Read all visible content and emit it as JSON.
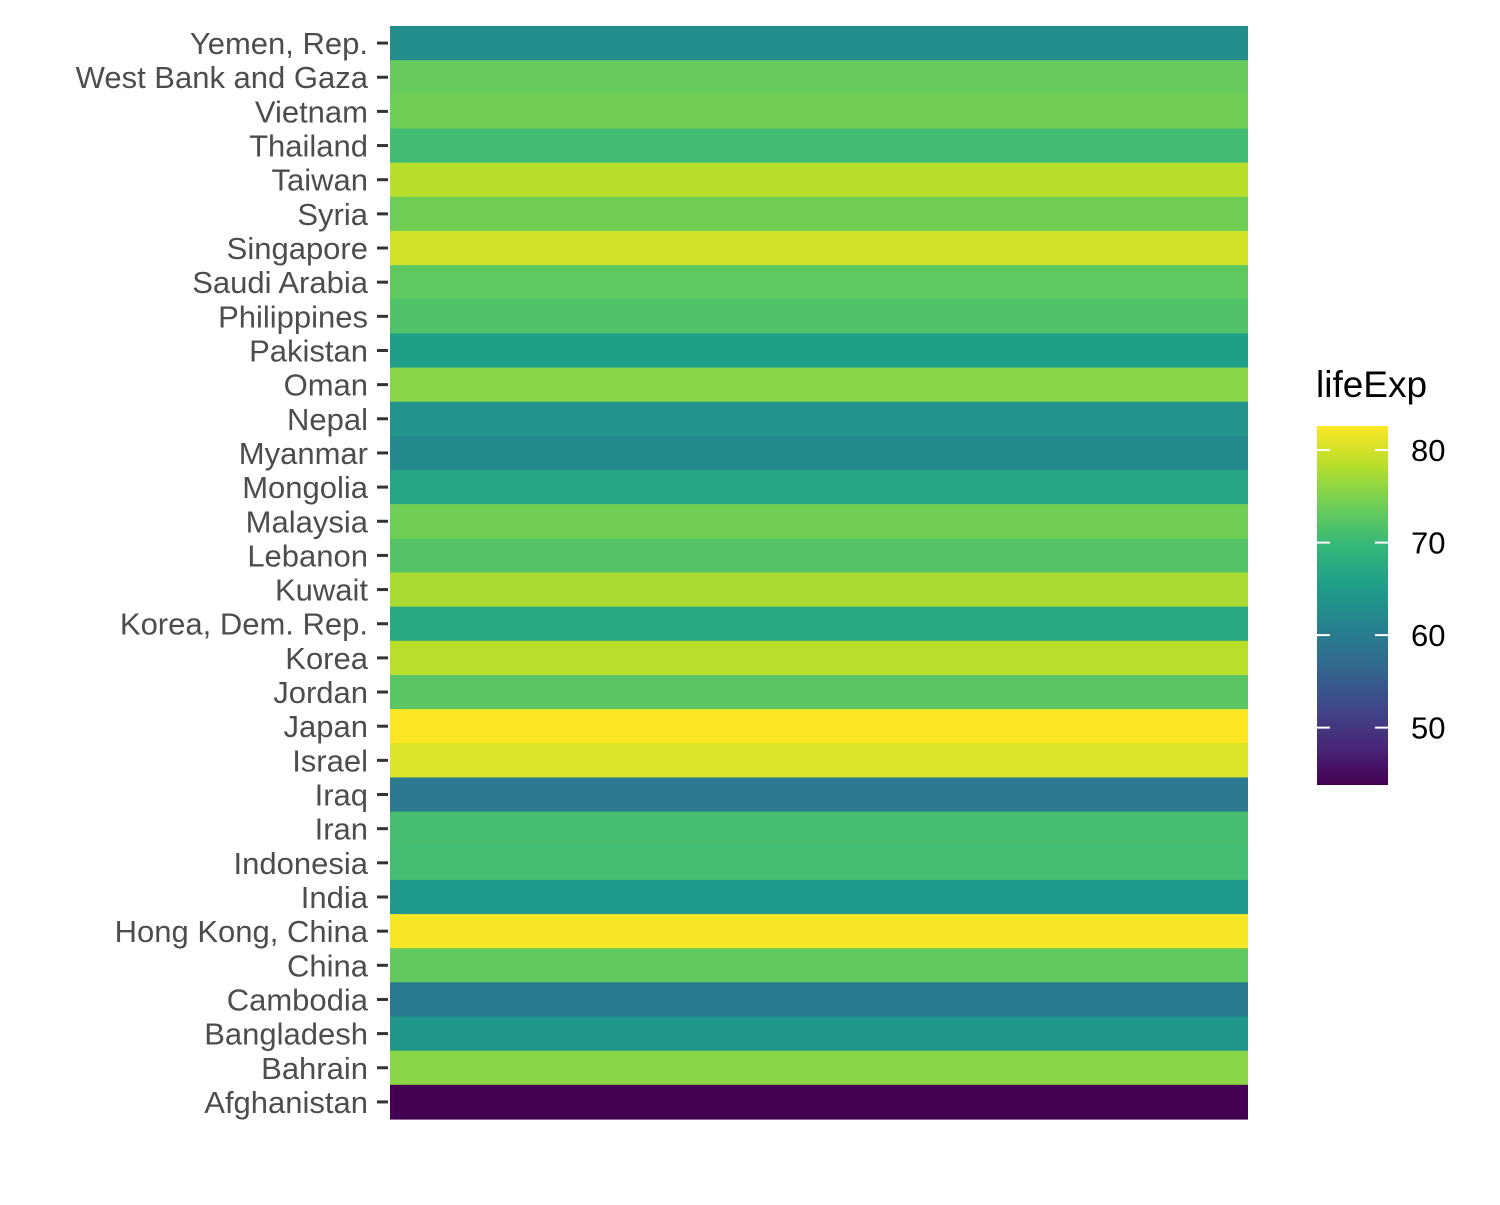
{
  "chart_data": {
    "type": "heatmap",
    "title": "",
    "xlabel": "",
    "ylabel": "",
    "categories": [
      "Yemen, Rep.",
      "West Bank and Gaza",
      "Vietnam",
      "Thailand",
      "Taiwan",
      "Syria",
      "Singapore",
      "Saudi Arabia",
      "Philippines",
      "Pakistan",
      "Oman",
      "Nepal",
      "Myanmar",
      "Mongolia",
      "Malaysia",
      "Lebanon",
      "Kuwait",
      "Korea, Dem. Rep.",
      "Korea",
      "Jordan",
      "Japan",
      "Israel",
      "Iraq",
      "Iran",
      "Indonesia",
      "India",
      "Hong Kong, China",
      "China",
      "Cambodia",
      "Bangladesh",
      "Bahrain",
      "Afghanistan"
    ],
    "values": [
      62.7,
      73.4,
      74.2,
      70.6,
      78.4,
      74.1,
      80.0,
      72.8,
      71.7,
      65.5,
      75.6,
      63.8,
      62.1,
      66.8,
      74.2,
      72.0,
      77.6,
      67.3,
      78.6,
      72.5,
      82.6,
      80.7,
      59.5,
      71.0,
      70.7,
      64.7,
      82.2,
      73.0,
      59.7,
      64.1,
      75.6,
      43.8
    ],
    "legend": {
      "title": "lifeExp",
      "placement": "right",
      "ticks": [
        50,
        60,
        70,
        80
      ],
      "range": [
        43.8,
        82.6
      ]
    },
    "colormap": "viridis",
    "grid": false
  }
}
